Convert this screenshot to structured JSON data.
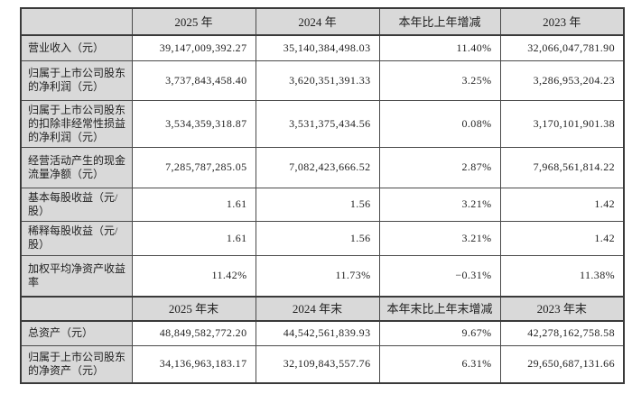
{
  "colors": {
    "page_bg": "#ffffff",
    "header_bg": "#d9d9d9",
    "label_bg": "#d9d9d9",
    "cell_bg": "#ffffff",
    "border": "#4a4a4a",
    "border_strong": "#3a3a3a",
    "text": "#1f1f1f"
  },
  "table": {
    "description": "key-financial-indicators-table",
    "sections": [
      {
        "header": [
          "",
          "2025 年",
          "2024 年",
          "本年比上年增减",
          "2023 年"
        ],
        "rows": [
          {
            "label": "营业收入（元）",
            "values": [
              "39,147,009,392.27",
              "35,140,384,498.03",
              "11.40%",
              "32,066,047,781.90"
            ]
          },
          {
            "label": "归属于上市公司股东的净利润（元）",
            "values": [
              "3,737,843,458.40",
              "3,620,351,391.33",
              "3.25%",
              "3,286,953,204.23"
            ]
          },
          {
            "label": "归属于上市公司股东的扣除非经常性损益的净利润（元）",
            "values": [
              "3,534,359,318.87",
              "3,531,375,434.56",
              "0.08%",
              "3,170,101,901.38"
            ]
          },
          {
            "label": "经营活动产生的现金流量净额（元）",
            "values": [
              "7,285,787,285.05",
              "7,082,423,666.52",
              "2.87%",
              "7,968,561,814.22"
            ]
          },
          {
            "label": "基本每股收益（元/股）",
            "values": [
              "1.61",
              "1.56",
              "3.21%",
              "1.42"
            ]
          },
          {
            "label": "稀释每股收益（元/股）",
            "values": [
              "1.61",
              "1.56",
              "3.21%",
              "1.42"
            ]
          },
          {
            "label": "加权平均净资产收益率",
            "values": [
              "11.42%",
              "11.73%",
              "−0.31%",
              "11.38%"
            ]
          }
        ]
      },
      {
        "header": [
          "",
          "2025 年末",
          "2024 年末",
          "本年末比上年末增减",
          "2023 年末"
        ],
        "rows": [
          {
            "label": "总资产（元）",
            "values": [
              "48,849,582,772.20",
              "44,542,561,839.93",
              "9.67%",
              "42,278,162,758.58"
            ]
          },
          {
            "label": "归属于上市公司股东的净资产（元）",
            "values": [
              "34,136,963,183.17",
              "32,109,843,557.76",
              "6.31%",
              "29,650,687,131.66"
            ]
          }
        ]
      }
    ]
  }
}
